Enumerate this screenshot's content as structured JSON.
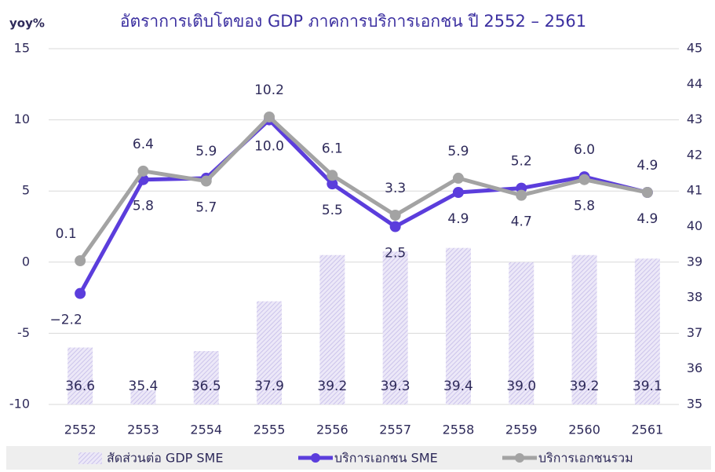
{
  "chart_data": {
    "type": "bar-line",
    "title": "อัตราการเติบโตของ GDP ภาคการบริการเอกชน ปี 2552 – 2561",
    "y_label": "yoy%",
    "categories": [
      "2552",
      "2553",
      "2554",
      "2555",
      "2556",
      "2557",
      "2558",
      "2559",
      "2560",
      "2561"
    ],
    "ylim": [
      -10,
      15
    ],
    "yticks": [
      -10,
      -5,
      0,
      5,
      10,
      15
    ],
    "y2lim": [
      35,
      45
    ],
    "y2ticks": [
      35,
      36,
      37,
      38,
      39,
      40,
      41,
      42,
      43,
      44,
      45
    ],
    "grid": true,
    "legend": "bottom",
    "series": [
      {
        "name": "สัดส่วนต่อ GDP SME",
        "type": "bar",
        "axis": "y2",
        "color": "#c9c1ea",
        "values": [
          36.6,
          35.4,
          36.5,
          37.9,
          39.2,
          39.3,
          39.4,
          39.0,
          39.2,
          39.1
        ],
        "value_labels": [
          "36.6",
          "35.4",
          "36.5",
          "37.9",
          "39.2",
          "39.3",
          "39.4",
          "39.0",
          "39.2",
          "39.1"
        ]
      },
      {
        "name": "บริการเอกชน SME",
        "type": "line",
        "color": "#5b3ddc",
        "values": [
          -2.2,
          5.8,
          5.9,
          10.0,
          5.5,
          2.5,
          4.9,
          5.2,
          6.0,
          4.9
        ],
        "value_labels": [
          "−2.2",
          "5.8",
          "5.9",
          "10.0",
          "5.5",
          "2.5",
          "4.9",
          "5.2",
          "6.0",
          "4.9"
        ]
      },
      {
        "name": "บริการเอกชนรวม",
        "type": "line",
        "color": "#a3a3a3",
        "values": [
          0.1,
          6.4,
          5.7,
          10.2,
          6.1,
          3.3,
          5.9,
          4.7,
          5.8,
          4.9
        ],
        "value_labels": [
          "0.1",
          "6.4",
          "5.7",
          "10.2",
          "6.1",
          "3.3",
          "5.9",
          "4.7",
          "5.8",
          "4.9"
        ]
      }
    ]
  }
}
